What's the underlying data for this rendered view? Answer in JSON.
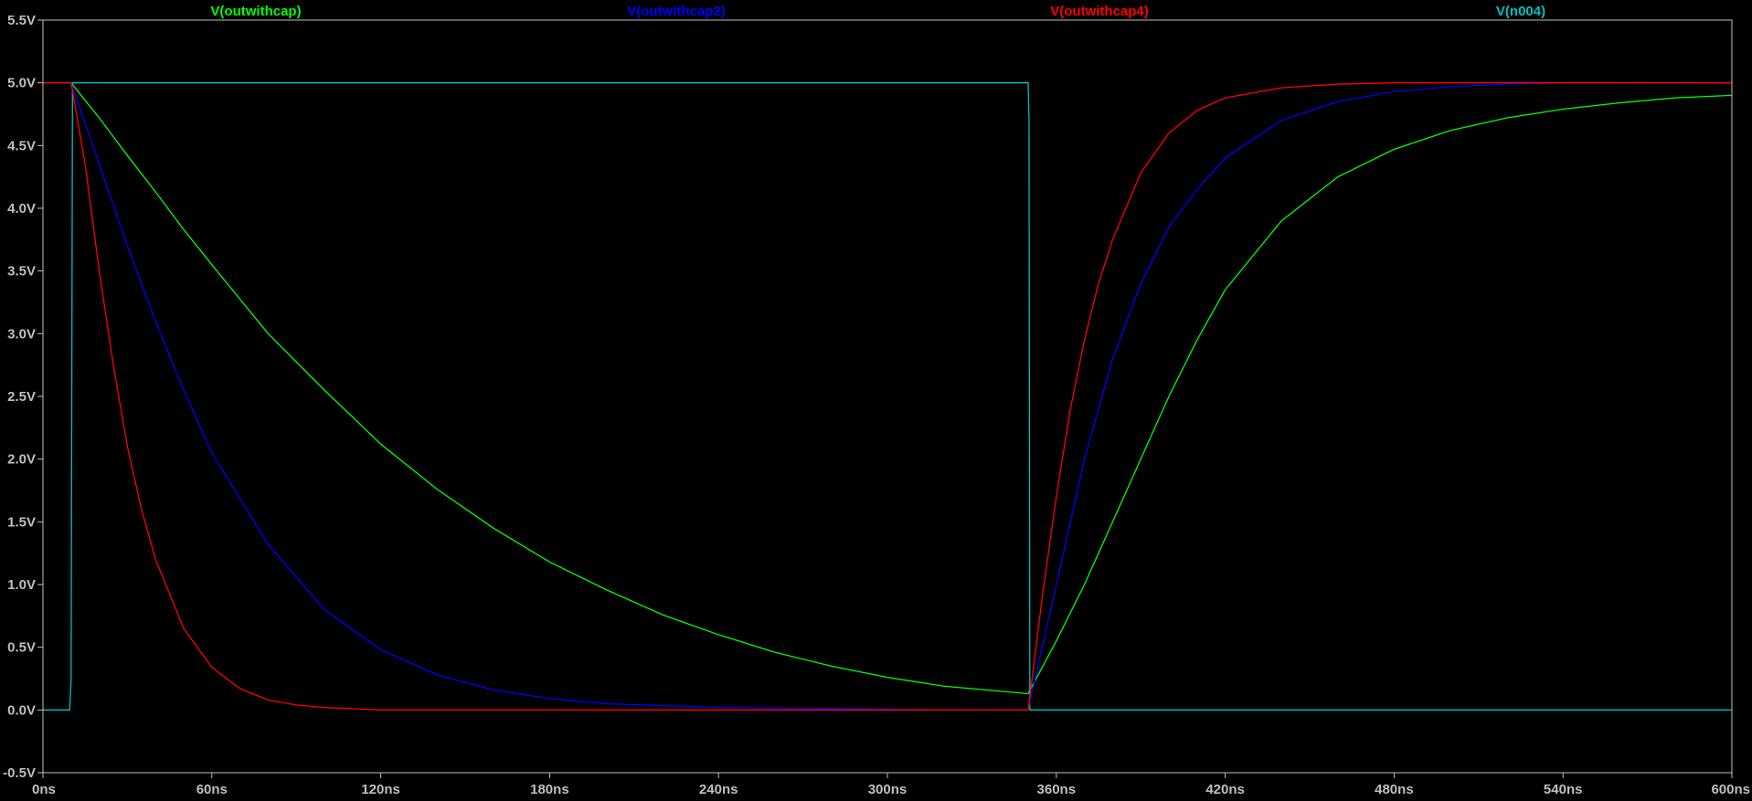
{
  "chart_data": {
    "type": "line",
    "title": "",
    "xlabel": "",
    "ylabel": "",
    "xlim": [
      0,
      600
    ],
    "ylim": [
      -0.5,
      5.5
    ],
    "x_unit": "ns",
    "y_unit": "V",
    "x_ticks": [
      0,
      60,
      120,
      180,
      240,
      300,
      360,
      420,
      480,
      540,
      600
    ],
    "x_tick_labels": [
      "0ns",
      "60ns",
      "120ns",
      "180ns",
      "240ns",
      "300ns",
      "360ns",
      "420ns",
      "480ns",
      "540ns",
      "600ns"
    ],
    "y_ticks": [
      -0.5,
      0,
      0.5,
      1,
      1.5,
      2,
      2.5,
      3,
      3.5,
      4,
      4.5,
      5,
      5.5
    ],
    "y_tick_labels": [
      "-0.5V",
      "0.0V",
      "0.5V",
      "1.0V",
      "1.5V",
      "2.0V",
      "2.5V",
      "3.0V",
      "3.5V",
      "4.0V",
      "4.5V",
      "5.0V",
      "5.5V"
    ],
    "grid": false,
    "background": "#000000",
    "axis_color": "#bfbfbf",
    "legend_placement": "top",
    "series": [
      {
        "name": "V(outwithcap)",
        "color": "#00ff00",
        "x": [
          0,
          10,
          20,
          30,
          40,
          50,
          60,
          80,
          100,
          120,
          140,
          160,
          180,
          200,
          220,
          240,
          260,
          280,
          300,
          320,
          340,
          350,
          360,
          370,
          380,
          390,
          400,
          410,
          420,
          440,
          460,
          480,
          500,
          520,
          540,
          560,
          580,
          600
        ],
        "y": [
          5.0,
          5.0,
          4.72,
          4.42,
          4.13,
          3.83,
          3.55,
          3.0,
          2.55,
          2.12,
          1.76,
          1.45,
          1.18,
          0.96,
          0.76,
          0.6,
          0.46,
          0.35,
          0.26,
          0.19,
          0.15,
          0.13,
          0.55,
          1.0,
          1.5,
          2.0,
          2.5,
          2.95,
          3.35,
          3.9,
          4.25,
          4.47,
          4.62,
          4.72,
          4.79,
          4.84,
          4.88,
          4.9
        ]
      },
      {
        "name": "V(outwithcap2)",
        "color": "#0000ff",
        "x": [
          0,
          10,
          20,
          30,
          40,
          50,
          60,
          80,
          100,
          120,
          140,
          160,
          180,
          200,
          240,
          280,
          320,
          350,
          360,
          370,
          380,
          390,
          400,
          410,
          420,
          440,
          460,
          480,
          500,
          520,
          540,
          560,
          580,
          600
        ],
        "y": [
          5.0,
          5.0,
          4.35,
          3.7,
          3.1,
          2.55,
          2.05,
          1.32,
          0.8,
          0.48,
          0.28,
          0.16,
          0.09,
          0.05,
          0.02,
          0.01,
          0.0,
          0.0,
          1.0,
          2.0,
          2.8,
          3.4,
          3.85,
          4.15,
          4.4,
          4.7,
          4.85,
          4.93,
          4.97,
          4.99,
          5.0,
          5.0,
          5.0,
          5.0
        ]
      },
      {
        "name": "V(outwithcap4)",
        "color": "#ff0000",
        "x": [
          0,
          10,
          15,
          20,
          25,
          30,
          35,
          40,
          50,
          60,
          70,
          80,
          90,
          100,
          120,
          140,
          200,
          300,
          350,
          355,
          360,
          365,
          370,
          375,
          380,
          390,
          400,
          410,
          420,
          440,
          460,
          480,
          500,
          550,
          600
        ],
        "y": [
          5.0,
          5.0,
          4.35,
          3.5,
          2.75,
          2.1,
          1.6,
          1.2,
          0.65,
          0.34,
          0.17,
          0.08,
          0.04,
          0.02,
          0.0,
          0.0,
          0.0,
          0.0,
          0.0,
          0.9,
          1.7,
          2.4,
          2.95,
          3.4,
          3.75,
          4.28,
          4.6,
          4.78,
          4.88,
          4.96,
          4.99,
          5.0,
          5.0,
          5.0,
          5.0
        ]
      },
      {
        "name": "V(n004)",
        "color": "#00bfbf",
        "x": [
          0,
          9.5,
          10,
          10.5,
          350,
          350.3,
          350.6,
          600
        ],
        "y": [
          0.0,
          0.0,
          0.25,
          5.0,
          5.0,
          4.7,
          0.0,
          0.0
        ]
      }
    ]
  }
}
